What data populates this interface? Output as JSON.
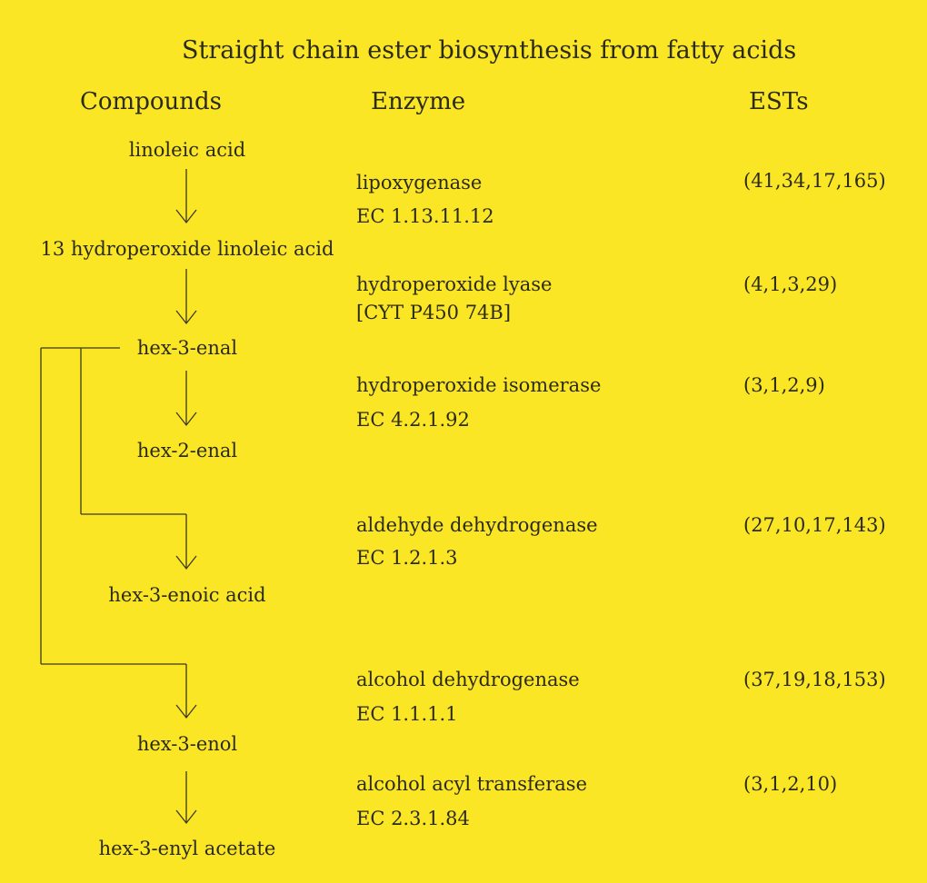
{
  "title": "Straight chain ester biosynthesis from fatty acids",
  "headers": {
    "compounds": "Compounds",
    "enzyme": "Enzyme",
    "ests": "ESTs"
  },
  "compounds": [
    "linoleic acid",
    "13 hydroperoxide linoleic acid",
    "hex-3-enal",
    "hex-2-enal",
    "hex-3-enoic acid",
    "hex-3-enol",
    "hex-3-enyl acetate"
  ],
  "steps": [
    {
      "enzyme": "lipoxygenase",
      "ec": "EC 1.13.11.12",
      "ests": "(41,34,17,165)"
    },
    {
      "enzyme": "hydroperoxide lyase",
      "ec": "[CYT P450 74B]",
      "ests": "(4,1,3,29)"
    },
    {
      "enzyme": "hydroperoxide isomerase",
      "ec": "EC 4.2.1.92",
      "ests": "(3,1,2,9)"
    },
    {
      "enzyme": "aldehyde dehydrogenase",
      "ec": "EC 1.2.1.3",
      "ests": "(27,10,17,143)"
    },
    {
      "enzyme": "alcohol dehydrogenase",
      "ec": "EC 1.1.1.1",
      "ests": "(37,19,18,153)"
    },
    {
      "enzyme": "alcohol acyl transferase",
      "ec": "EC 2.3.1.84",
      "ests": "(3,1,2,10)"
    }
  ]
}
